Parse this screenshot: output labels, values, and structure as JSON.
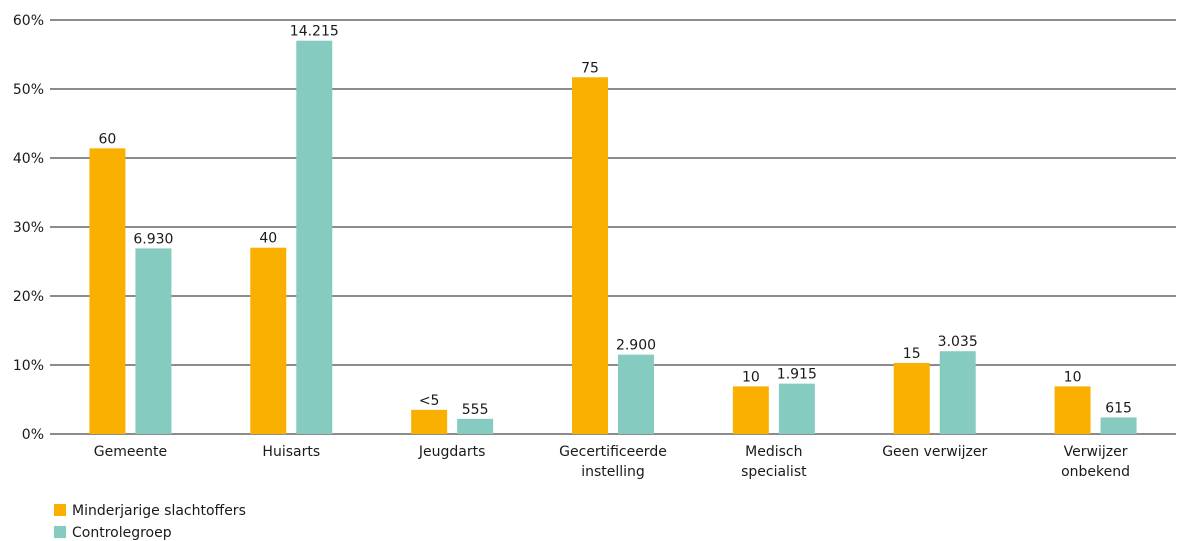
{
  "chart_data": {
    "type": "bar",
    "title": "",
    "xlabel": "",
    "ylabel": "",
    "ylim": [
      0,
      60
    ],
    "y_ticks": [
      "0%",
      "10%",
      "20%",
      "30%",
      "40%",
      "50%",
      "60%"
    ],
    "y_tick_values": [
      0,
      10,
      20,
      30,
      40,
      50,
      60
    ],
    "grid": true,
    "legend_position": "bottom-left",
    "categories": [
      [
        "Gemeente"
      ],
      [
        "Huisarts"
      ],
      [
        "Jeugdarts"
      ],
      [
        "Gecertificeerde",
        "instelling"
      ],
      [
        "Medisch",
        "specialist"
      ],
      [
        "Geen verwijzer"
      ],
      [
        "Verwijzer",
        "onbekend"
      ]
    ],
    "series": [
      {
        "name": "Minderjarige slachtoffers",
        "color": "#F9B000",
        "values": [
          41.4,
          27.0,
          3.5,
          51.7,
          6.9,
          10.3,
          6.9
        ],
        "labels": [
          "60",
          "40",
          "<5",
          "75",
          "10",
          "15",
          "10"
        ]
      },
      {
        "name": "Controlegroep",
        "color": "#86CBBF",
        "values": [
          26.9,
          57.0,
          2.2,
          11.5,
          7.3,
          12.0,
          2.4
        ],
        "labels": [
          "6.930",
          "14.215",
          "555",
          "2.900",
          "1.915",
          "3.035",
          "615"
        ]
      }
    ]
  }
}
